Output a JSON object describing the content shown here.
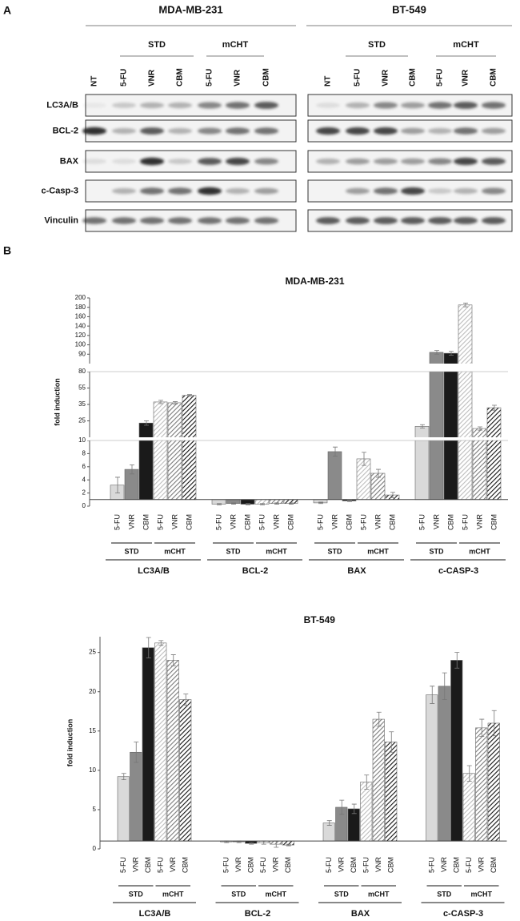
{
  "panel_a": {
    "label": "A",
    "cell_lines": [
      "MDA-MB-231",
      "BT-549"
    ],
    "groups": [
      "STD",
      "mCHT"
    ],
    "lanes": [
      "NT",
      "5-FU",
      "VNR",
      "CBM",
      "5-FU",
      "VNR",
      "CBM"
    ],
    "proteins": [
      "LC3A/B",
      "BCL-2",
      "BAX",
      "c-Casp-3",
      "Vinculin"
    ]
  },
  "panel_b_label": "B",
  "chart_data": [
    {
      "type": "bar",
      "title": "MDA-MB-231",
      "y_label": "fold induction",
      "categories": [
        "LC3A/B",
        "BCL-2",
        "BAX",
        "c-CASP-3"
      ],
      "group_labels": [
        "STD",
        "mCHT"
      ],
      "baseline": 1,
      "ylim": [
        0,
        200
      ],
      "y_breaks": [
        10,
        80
      ],
      "y_scale": "broken",
      "yticks": [
        0,
        2,
        4,
        6,
        8,
        10,
        25,
        35,
        55,
        80,
        90,
        100,
        120,
        140,
        160,
        180,
        200
      ],
      "series": [
        {
          "name": "5-FU",
          "color": "#d9d9d9",
          "pattern": "solid",
          "values": [
            3.2,
            0.3,
            0.5,
            20
          ],
          "errors": [
            1.2,
            0.1,
            0.1,
            1.5
          ]
        },
        {
          "name": "VNR",
          "color": "#8a8a8a",
          "pattern": "solid",
          "values": [
            5.6,
            0.4,
            8.3,
            92
          ],
          "errors": [
            0.7,
            0.1,
            0.7,
            2
          ]
        },
        {
          "name": "CBM",
          "color": "#1a1a1a",
          "pattern": "solid",
          "values": [
            23,
            0.3,
            0.8,
            91
          ],
          "errors": [
            2,
            0.1,
            0.1,
            2
          ]
        },
        {
          "name": "5-FU",
          "color": "#bdbdbd",
          "pattern": "hatch",
          "values": [
            38,
            0.3,
            7.2,
            185
          ],
          "errors": [
            2,
            0.1,
            1,
            4
          ]
        },
        {
          "name": "VNR",
          "color": "#7a7a7a",
          "pattern": "hatch",
          "values": [
            37,
            0.4,
            5.0,
            18
          ],
          "errors": [
            1.5,
            0.1,
            0.6,
            1.5
          ]
        },
        {
          "name": "CBM",
          "color": "#111111",
          "pattern": "hatch",
          "values": [
            46,
            0.4,
            1.7,
            33
          ],
          "errors": [
            1,
            0.1,
            0.4,
            1.5
          ]
        }
      ]
    },
    {
      "type": "bar",
      "title": "BT-549",
      "y_label": "fold induction",
      "categories": [
        "LC3A/B",
        "BCL-2",
        "BAX",
        "c-CASP-3"
      ],
      "group_labels": [
        "STD",
        "mCHT"
      ],
      "baseline": 1,
      "ylim": [
        0,
        27
      ],
      "yticks": [
        0,
        5,
        10,
        15,
        20,
        25
      ],
      "series": [
        {
          "name": "5-FU",
          "color": "#d9d9d9",
          "pattern": "solid",
          "values": [
            9.2,
            0.9,
            3.3,
            19.6
          ],
          "errors": [
            0.4,
            0.1,
            0.3,
            1.1
          ]
        },
        {
          "name": "VNR",
          "color": "#8a8a8a",
          "pattern": "solid",
          "values": [
            12.3,
            0.9,
            5.3,
            20.7
          ],
          "errors": [
            1.3,
            0.1,
            0.9,
            1.7
          ]
        },
        {
          "name": "CBM",
          "color": "#1a1a1a",
          "pattern": "solid",
          "values": [
            25.6,
            0.7,
            5.1,
            24.0
          ],
          "errors": [
            1.3,
            0.1,
            0.6,
            1.0
          ]
        },
        {
          "name": "5-FU",
          "color": "#bdbdbd",
          "pattern": "hatch",
          "values": [
            26.2,
            0.8,
            8.5,
            9.6
          ],
          "errors": [
            0.3,
            0.2,
            0.9,
            1.0
          ]
        },
        {
          "name": "VNR",
          "color": "#7a7a7a",
          "pattern": "hatch",
          "values": [
            24.0,
            0.6,
            16.5,
            15.4
          ],
          "errors": [
            0.7,
            0.4,
            0.9,
            1.1
          ]
        },
        {
          "name": "CBM",
          "color": "#111111",
          "pattern": "hatch",
          "values": [
            19.0,
            0.5,
            13.6,
            16.0
          ],
          "errors": [
            0.7,
            0.1,
            1.3,
            1.6
          ]
        }
      ]
    }
  ]
}
